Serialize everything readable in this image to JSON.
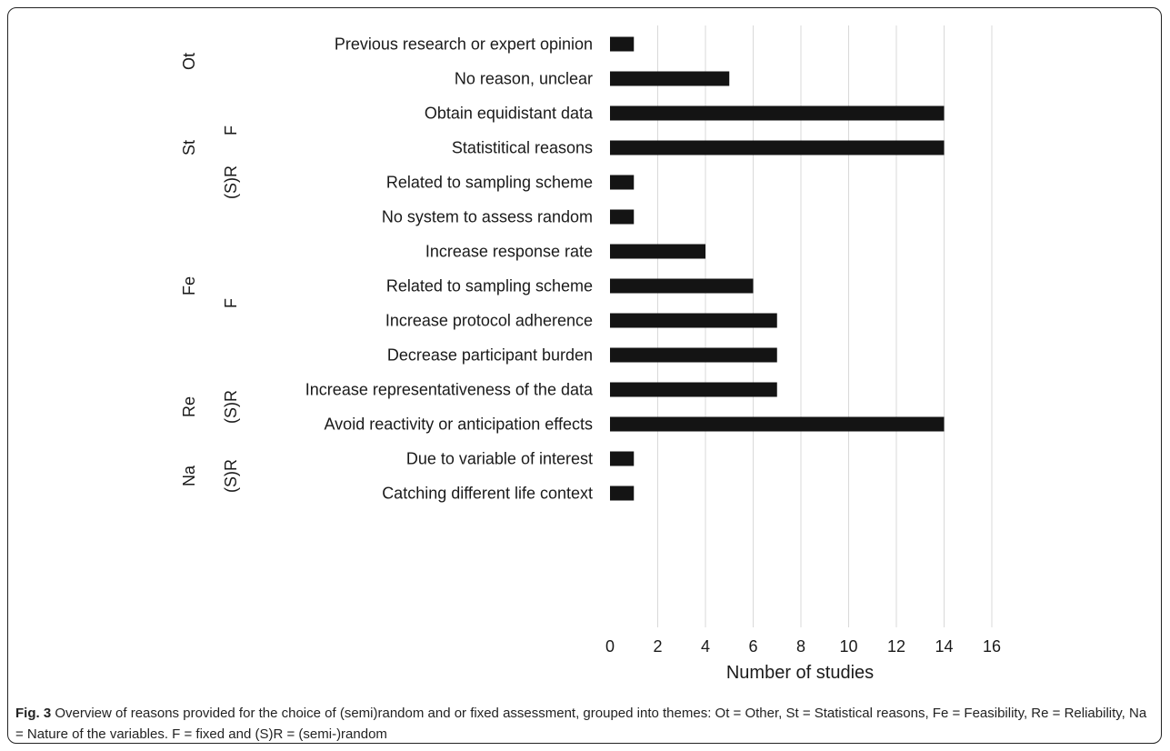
{
  "chart_data": {
    "type": "bar",
    "orientation": "horizontal",
    "categories": [
      "Previous research or expert opinion",
      "No reason, unclear",
      "Obtain equidistant data",
      "Statistitical reasons",
      "Related to sampling scheme",
      "No system to assess random",
      "Increase response rate",
      "Related to sampling scheme",
      "Increase protocol adherence",
      "Decrease participant burden",
      "Increase representativeness of the data",
      "Avoid reactivity or anticipation effects",
      "Due to variable of interest",
      "Catching different life context"
    ],
    "values": [
      1,
      5,
      14,
      14,
      1,
      1,
      4,
      6,
      7,
      7,
      7,
      14,
      1,
      1
    ],
    "xlabel": "Number of studies",
    "ylabel": "",
    "xlim": [
      0,
      16
    ],
    "xticks": [
      "0",
      "2",
      "4",
      "6",
      "8",
      "10",
      "12",
      "14",
      "16"
    ],
    "grid": true,
    "bar_color": "#141414",
    "theme_groups": [
      {
        "label": "Ot",
        "first": 0,
        "last": 1
      },
      {
        "label": "St",
        "first": 2,
        "last": 4
      },
      {
        "label": "Fe",
        "first": 5,
        "last": 9
      },
      {
        "label": "Re",
        "first": 10,
        "last": 11
      },
      {
        "label": "Na",
        "first": 12,
        "last": 13
      }
    ],
    "type_groups": [
      {
        "label": "F",
        "first": 2,
        "last": 3
      },
      {
        "label": "(S)R",
        "first": 4,
        "last": 4
      },
      {
        "label": "F",
        "first": 7,
        "last": 8
      },
      {
        "label": "(S)R",
        "first": 10,
        "last": 11
      },
      {
        "label": "(S)R",
        "first": 12,
        "last": 13
      }
    ]
  },
  "caption": {
    "label": "Fig. 3",
    "text": " Overview of reasons provided for the choice of (semi)random and or fixed assessment, grouped into themes: Ot = Other, St = Statistical reasons, Fe = Feasibility, Re = Reliability, Na = Nature of the variables. F = fixed and (S)R = (semi-)random"
  }
}
